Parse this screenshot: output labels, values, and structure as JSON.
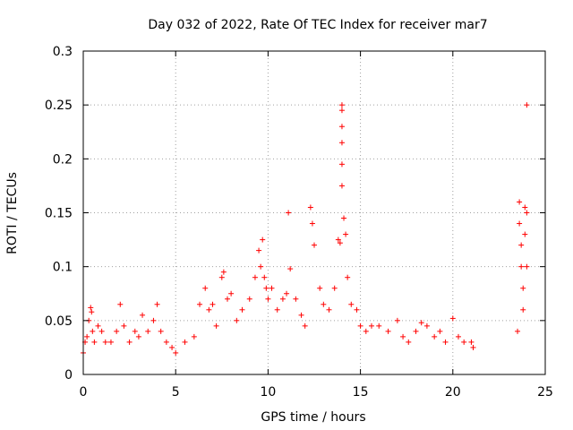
{
  "chart_data": {
    "type": "scatter",
    "title": "Day 032 of 2022, Rate Of TEC Index for receiver mar7",
    "xlabel": "GPS time / hours",
    "ylabel": "ROTI / TECUs",
    "xlim": [
      0,
      25
    ],
    "ylim": [
      0,
      0.3
    ],
    "x_ticks": [
      "0",
      "5",
      "10",
      "15",
      "20",
      "25"
    ],
    "y_ticks": [
      "0",
      "0.05",
      "0.1",
      "0.15",
      "0.2",
      "0.25",
      "0.3"
    ],
    "grid": true,
    "marker": "plus",
    "color": "#ff0000",
    "series": [
      {
        "x": [
          0.0,
          0.1,
          0.2,
          0.3,
          0.4,
          0.45,
          0.5,
          0.6,
          0.8,
          1.0,
          1.2,
          1.5,
          1.8,
          2.0,
          2.2,
          2.5,
          2.8,
          3.0,
          3.2,
          3.5,
          3.8,
          4.0,
          4.2,
          4.5,
          4.8,
          5.0,
          5.5,
          6.0,
          6.3,
          6.6,
          6.8,
          7.0,
          7.2,
          7.5,
          7.6,
          7.8,
          8.0,
          8.3,
          8.6,
          9.0,
          9.3,
          9.5,
          9.6,
          9.7,
          9.8,
          9.9,
          10.0,
          10.2,
          10.5,
          10.8,
          11.0,
          11.1,
          11.2,
          11.5,
          11.8,
          12.0,
          12.3,
          12.4,
          12.5,
          12.8,
          13.0,
          13.3,
          13.6,
          13.8,
          13.9,
          14.0,
          14.0,
          14.0,
          14.0,
          14.0,
          14.0,
          14.1,
          14.2,
          14.3,
          14.5,
          14.8,
          15.0,
          15.3,
          15.6,
          16.0,
          16.5,
          17.0,
          17.3,
          17.6,
          18.0,
          18.3,
          18.6,
          19.0,
          19.3,
          19.6,
          20.0,
          20.3,
          20.6,
          21.0,
          21.1,
          23.5,
          23.6,
          23.6,
          23.7,
          23.7,
          23.8,
          23.8,
          23.9,
          23.9,
          24.0,
          24.0,
          24.0
        ],
        "y": [
          0.02,
          0.03,
          0.035,
          0.05,
          0.062,
          0.058,
          0.04,
          0.03,
          0.045,
          0.04,
          0.03,
          0.03,
          0.04,
          0.065,
          0.045,
          0.03,
          0.04,
          0.035,
          0.055,
          0.04,
          0.05,
          0.065,
          0.04,
          0.03,
          0.025,
          0.02,
          0.03,
          0.035,
          0.065,
          0.08,
          0.06,
          0.065,
          0.045,
          0.09,
          0.095,
          0.07,
          0.075,
          0.05,
          0.06,
          0.07,
          0.09,
          0.115,
          0.1,
          0.125,
          0.09,
          0.08,
          0.07,
          0.08,
          0.06,
          0.07,
          0.075,
          0.15,
          0.098,
          0.07,
          0.055,
          0.045,
          0.155,
          0.14,
          0.12,
          0.08,
          0.065,
          0.06,
          0.08,
          0.125,
          0.122,
          0.25,
          0.245,
          0.23,
          0.215,
          0.195,
          0.175,
          0.145,
          0.13,
          0.09,
          0.065,
          0.06,
          0.045,
          0.04,
          0.045,
          0.045,
          0.04,
          0.05,
          0.035,
          0.03,
          0.04,
          0.048,
          0.045,
          0.035,
          0.04,
          0.03,
          0.052,
          0.035,
          0.03,
          0.03,
          0.025,
          0.04,
          0.16,
          0.14,
          0.12,
          0.1,
          0.08,
          0.06,
          0.155,
          0.13,
          0.15,
          0.1,
          0.25
        ]
      }
    ]
  }
}
